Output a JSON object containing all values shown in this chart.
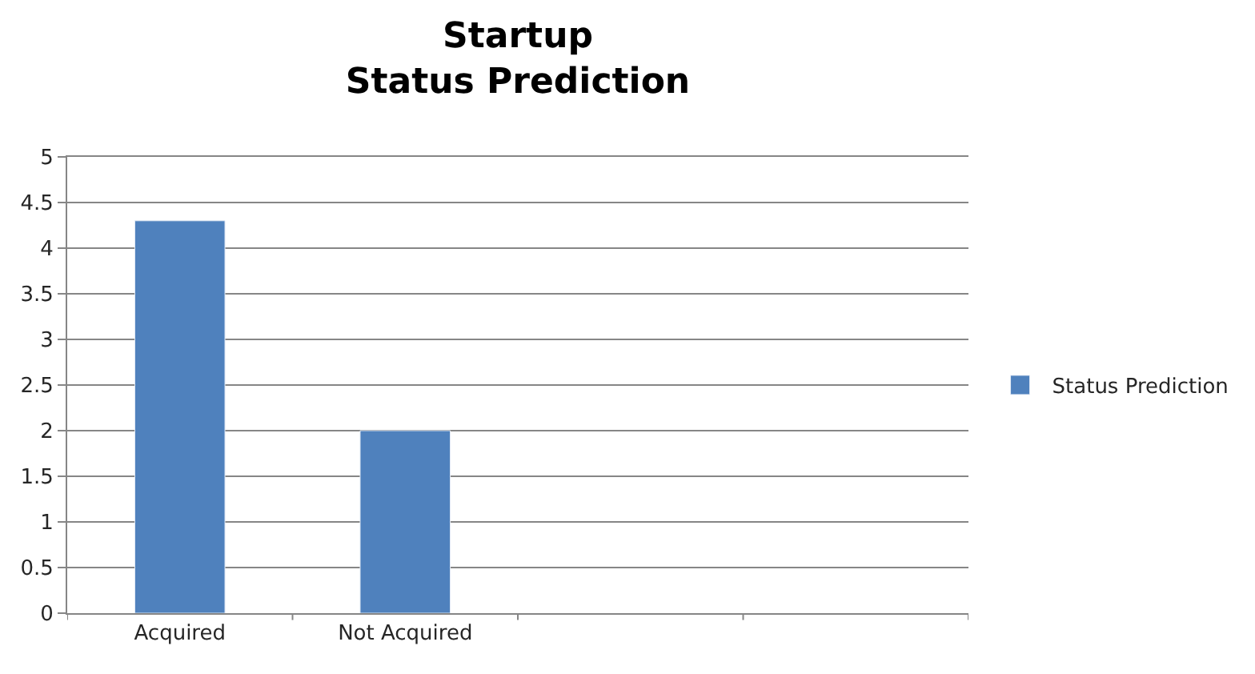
{
  "chart_data": {
    "type": "bar",
    "title": "Startup\nStatus Prediction",
    "categories": [
      "Acquired",
      "Not Acquired",
      null,
      null
    ],
    "series": [
      {
        "name": "Status Prediction",
        "color": "#4f81bd",
        "values": [
          4.3,
          2.0,
          null,
          null
        ]
      }
    ],
    "ylim": [
      0,
      5
    ],
    "yticks": [
      0,
      0.5,
      1,
      1.5,
      2,
      2.5,
      3,
      3.5,
      4,
      4.5,
      5
    ],
    "grid": "y",
    "legend": "right"
  }
}
